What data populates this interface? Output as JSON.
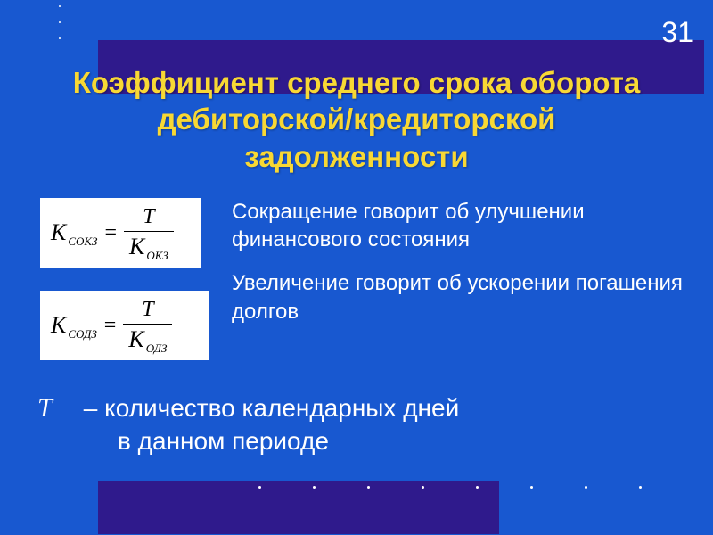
{
  "slide_number": "31",
  "title_line1": "Коэффициент среднего срока оборота",
  "title_line2": "дебиторской/кредиторской",
  "title_line3": "задолженности",
  "colors": {
    "background": "#1858d0",
    "accent_bar": "#2f1a8c",
    "title_text": "#f8d834",
    "body_text": "#ffffff",
    "formula_bg": "#ffffff",
    "formula_text": "#000000"
  },
  "formula1": {
    "lhs_var": "K",
    "lhs_sub": "СОКЗ",
    "numerator": "T",
    "denom_var": "K",
    "denom_sub": "ОКЗ"
  },
  "formula2": {
    "lhs_var": "K",
    "lhs_sub": "СОДЗ",
    "numerator": "T",
    "denom_var": "K",
    "denom_sub": "ОДЗ"
  },
  "note1": "Сокращение говорит об улучшении финансового состояния",
  "note2": "Увеличение говорит об ускорении погашения долгов",
  "definition": {
    "var": "T",
    "dash": "–",
    "text_line1": "количество календарных дней",
    "text_line2": "в данном периоде"
  }
}
